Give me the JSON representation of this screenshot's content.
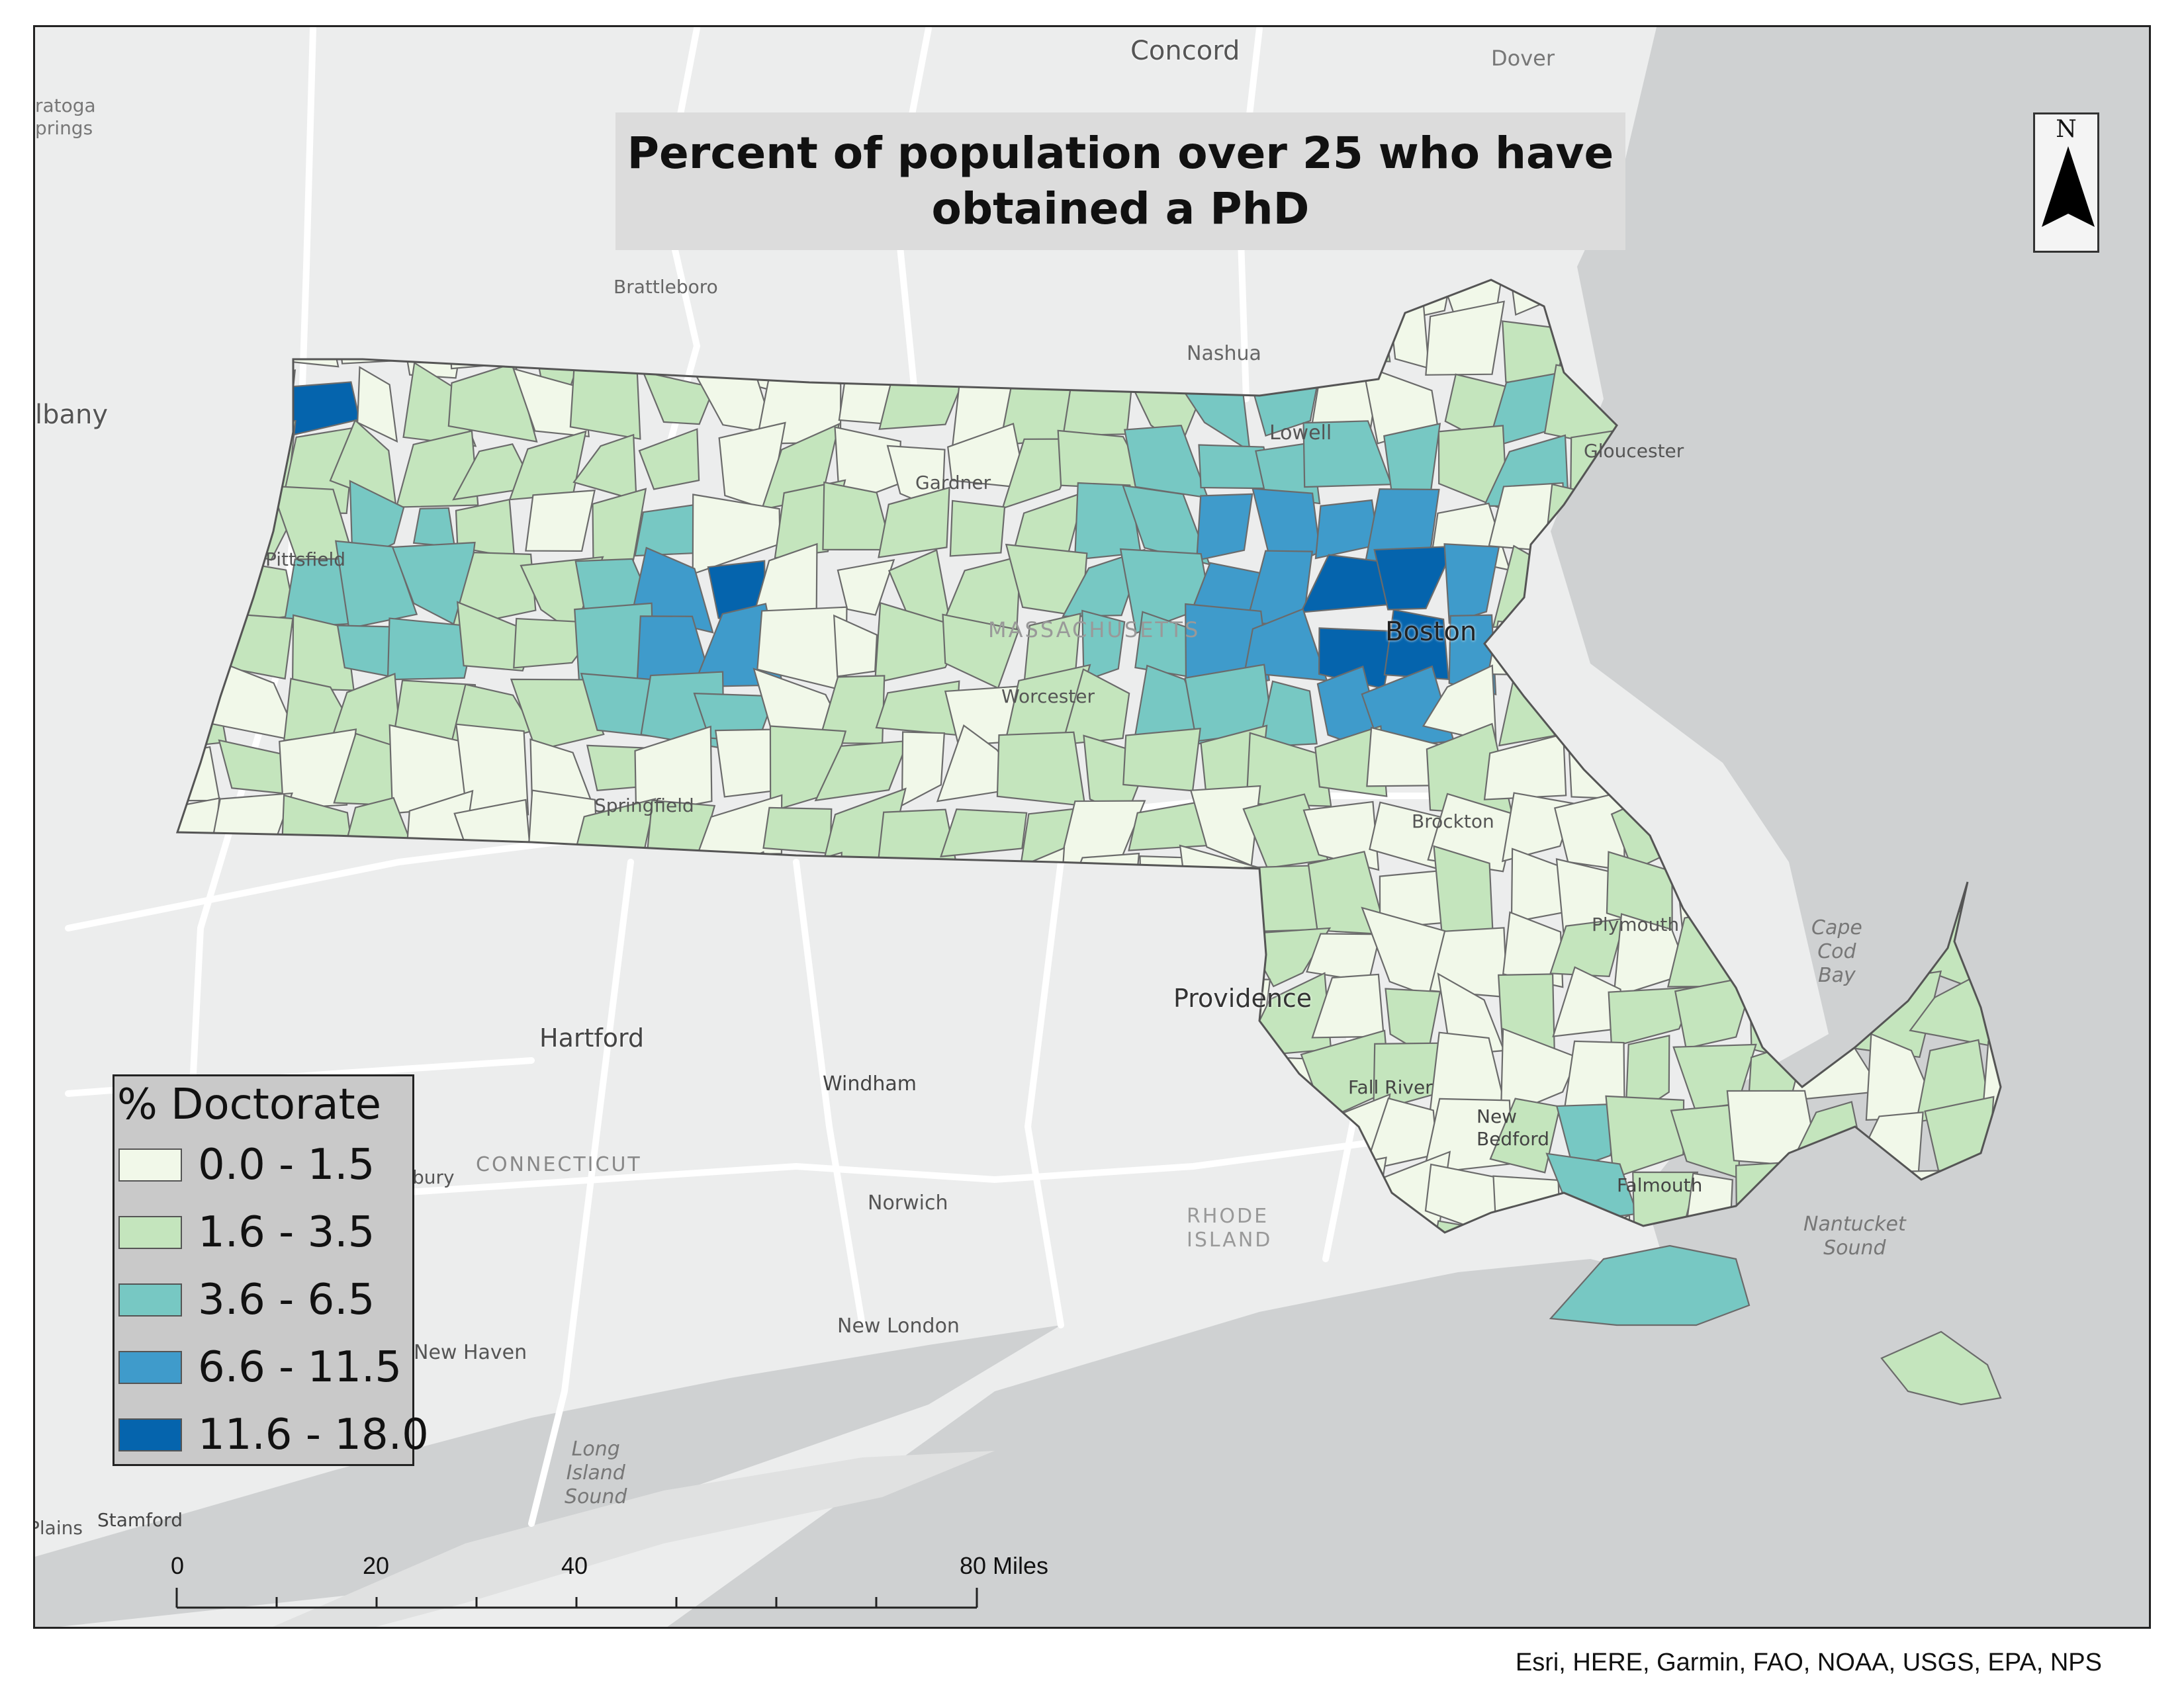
{
  "map": {
    "title": "Percent of population over 25 who have\nobtained a PhD",
    "region": "MASSACHUSETTS",
    "north_label": "N",
    "attribution": "Esri, HERE, Garmin, FAO, NOAA, USGS, EPA, NPS",
    "colors": {
      "water": "#cfd1d2",
      "land": "#eceded",
      "roads": "#ffffff",
      "town_border": "#6b6b6b"
    },
    "legend": {
      "title": "% Doctorate",
      "classes": [
        {
          "label": "0.0 - 1.5",
          "color": "#f1f8e9"
        },
        {
          "label": "1.6 - 3.5",
          "color": "#c4e5bd"
        },
        {
          "label": "3.6 - 6.5",
          "color": "#77c8c3"
        },
        {
          "label": "6.6 - 11.5",
          "color": "#3f9bcb"
        },
        {
          "label": "11.6 - 18.0",
          "color": "#0564ad"
        }
      ]
    },
    "scale_bar": {
      "ticks": [
        "0",
        "20",
        "40",
        "80 Miles"
      ]
    },
    "place_labels": [
      {
        "name": "Concord",
        "emphasis": "city"
      },
      {
        "name": "Dover",
        "emphasis": "town"
      },
      {
        "name": "ratoga\nprings",
        "emphasis": "town"
      },
      {
        "name": "lbany",
        "emphasis": "city"
      },
      {
        "name": "Brattleboro",
        "emphasis": "town"
      },
      {
        "name": "Nashua",
        "emphasis": "town"
      },
      {
        "name": "Lowell",
        "emphasis": "town"
      },
      {
        "name": "Gloucester",
        "emphasis": "town"
      },
      {
        "name": "Gardner",
        "emphasis": "town"
      },
      {
        "name": "Pittsfield",
        "emphasis": "town"
      },
      {
        "name": "MASSACHUSETTS",
        "emphasis": "region"
      },
      {
        "name": "Boston",
        "emphasis": "city"
      },
      {
        "name": "Worcester",
        "emphasis": "town"
      },
      {
        "name": "Springfield",
        "emphasis": "town"
      },
      {
        "name": "Brockton",
        "emphasis": "town"
      },
      {
        "name": "Plymouth",
        "emphasis": "town"
      },
      {
        "name": "Cape\nCod\nBay",
        "emphasis": "water"
      },
      {
        "name": "Providence",
        "emphasis": "city"
      },
      {
        "name": "Hartford",
        "emphasis": "city"
      },
      {
        "name": "Windham",
        "emphasis": "town"
      },
      {
        "name": "CONNECTICUT",
        "emphasis": "region"
      },
      {
        "name": "bury",
        "emphasis": "town"
      },
      {
        "name": "Norwich",
        "emphasis": "town"
      },
      {
        "name": "RHODE\nISLAND",
        "emphasis": "region"
      },
      {
        "name": "Fall River",
        "emphasis": "town"
      },
      {
        "name": "New\nBedford",
        "emphasis": "town"
      },
      {
        "name": "Falmouth",
        "emphasis": "town"
      },
      {
        "name": "Nantucket\nSound",
        "emphasis": "water"
      },
      {
        "name": "New London",
        "emphasis": "town"
      },
      {
        "name": "New Haven",
        "emphasis": "town"
      },
      {
        "name": "Long\nIsland\nSound",
        "emphasis": "water"
      },
      {
        "name": "Plains",
        "emphasis": "town"
      },
      {
        "name": "Stamford",
        "emphasis": "town"
      }
    ]
  }
}
